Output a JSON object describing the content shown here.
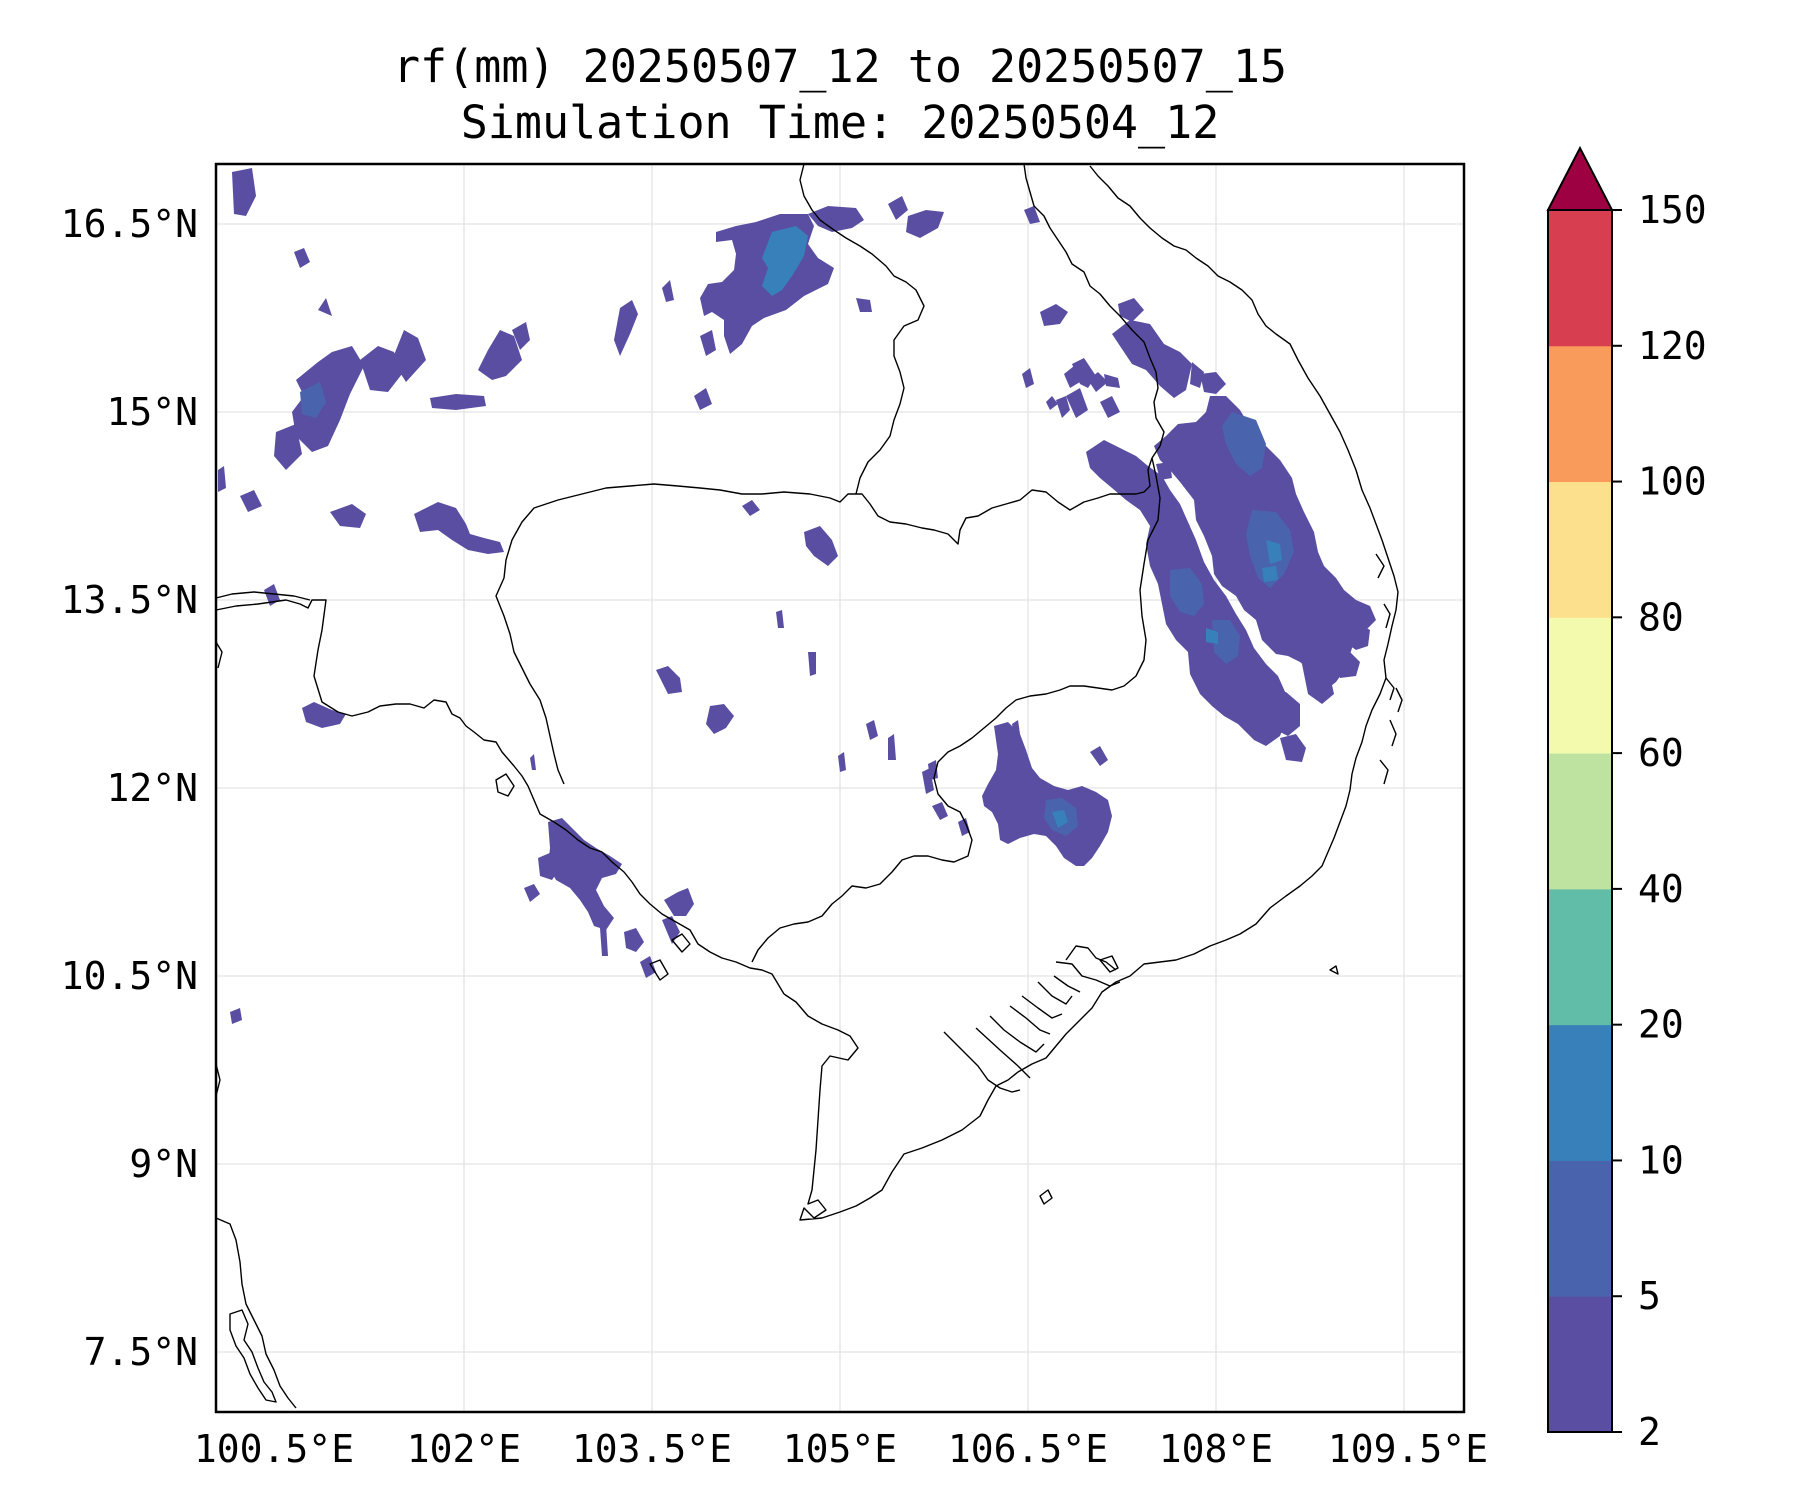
{
  "title_line1": "rf(mm) 20250507_12 to 20250507_15",
  "title_line2": "Simulation Time: 20250504_12",
  "map": {
    "lat_ticks": [
      "16.5°N",
      "15°N",
      "13.5°N",
      "12°N",
      "10.5°N",
      "9°N",
      "7.5°N"
    ],
    "lon_ticks": [
      "100.5°E",
      "102°E",
      "103.5°E",
      "105°E",
      "106.5°E",
      "108°E",
      "109.5°E"
    ],
    "gridlines": true
  },
  "colorbar": {
    "levels": [
      "2",
      "5",
      "10",
      "20",
      "40",
      "60",
      "80",
      "100",
      "120",
      "150"
    ],
    "colors": [
      "#5a4ea3",
      "#4a63ad",
      "#3780ba",
      "#61bca8",
      "#bee3a0",
      "#f3faad",
      "#fde08d",
      "#f99b5a",
      "#d73e4f",
      "#9e0142"
    ],
    "extend": "max"
  },
  "rain_cells_color_light": "#5a4ea3",
  "rain_cells_color_mid": "#4a63ad",
  "rain_cells_color_heavy": "#3780ba"
}
